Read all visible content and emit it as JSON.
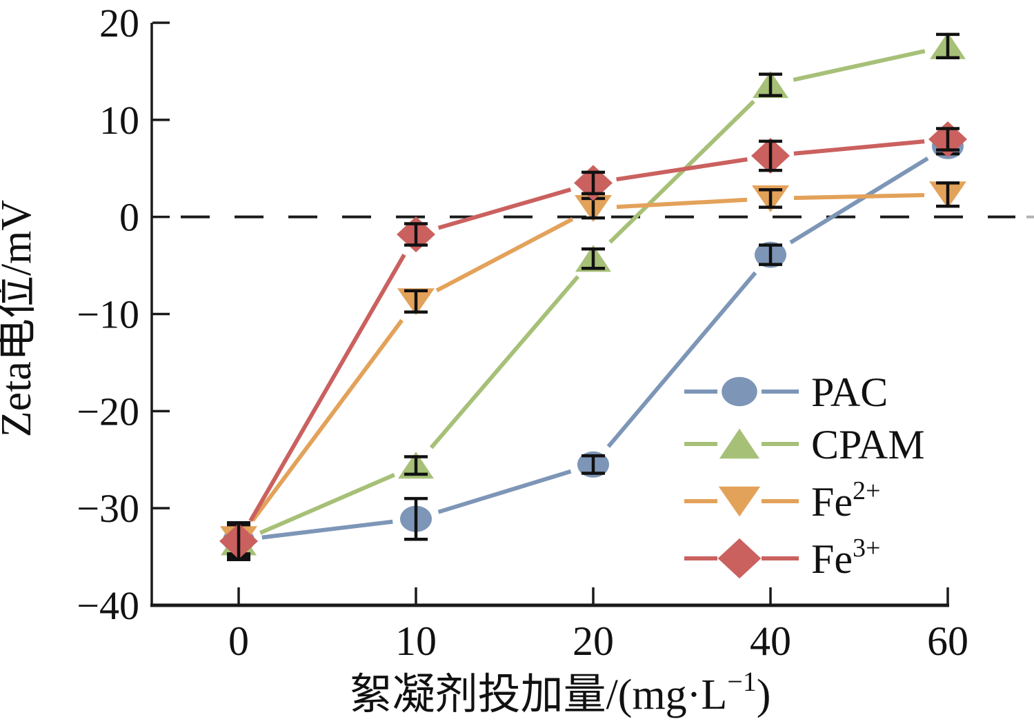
{
  "figure": {
    "background": "#ffffff"
  },
  "chart_data": {
    "type": "line",
    "title": "",
    "xlabel": {
      "pre": "絮凝剂投加量/(mg·L",
      "sup": "−1",
      "post": ")"
    },
    "ylabel": "Zeta电位/mV",
    "categories": [
      0,
      10,
      20,
      40,
      60
    ],
    "x_tick_labels": [
      "0",
      "10",
      "20",
      "40",
      "60"
    ],
    "y_ticks": [
      20,
      10,
      0,
      -10,
      -20,
      -30,
      -40
    ],
    "y_tick_labels": [
      "20",
      "10",
      "0",
      "−10",
      "−20",
      "−30",
      "−40"
    ],
    "ylim": [
      -40,
      20
    ],
    "grid": false,
    "zero_line": {
      "style": "dashed",
      "color": "#1a1a1a"
    },
    "legend_position": "inside lower right",
    "axis_color": "#1a1a1a",
    "error_bar_color": "#111111",
    "series": [
      {
        "key": "pac",
        "name": "PAC",
        "sup": "",
        "marker": "circle",
        "color": "#7D96B7",
        "values": [
          -33.3,
          -31.1,
          -25.5,
          -3.9,
          7.3
        ],
        "errors": [
          1.8,
          2.1,
          0.9,
          1.0,
          0.8
        ]
      },
      {
        "key": "cpam",
        "name": "CPAM",
        "sup": "",
        "marker": "triangle-up",
        "color": "#A7C078",
        "values": [
          -33.5,
          -25.6,
          -4.3,
          13.6,
          17.6
        ],
        "errors": [
          1.5,
          0.9,
          1.0,
          1.1,
          1.2
        ]
      },
      {
        "key": "fe2",
        "name": "Fe",
        "sup": "2+",
        "marker": "triangle-down",
        "color": "#E3A25A",
        "values": [
          -33.2,
          -8.7,
          0.9,
          1.9,
          2.3
        ],
        "errors": [
          1.5,
          1.1,
          1.0,
          0.9,
          1.2
        ]
      },
      {
        "key": "fe3",
        "name": "Fe",
        "sup": "3+",
        "marker": "diamond",
        "color": "#CA615F",
        "values": [
          -33.4,
          -1.8,
          3.5,
          6.3,
          8.0
        ],
        "errors": [
          1.9,
          1.1,
          1.1,
          1.5,
          1.1
        ]
      }
    ]
  }
}
